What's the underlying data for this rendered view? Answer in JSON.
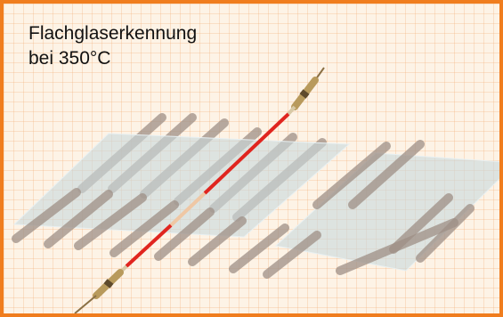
{
  "caption": {
    "line1": "Flachglaserkennung",
    "line2": "bei 350°C"
  },
  "colors": {
    "frame_border": "#f07d1e",
    "grid_background": "#fdf3e6",
    "roller": "#9e8f86",
    "glass_sheet": "#c9d8dc",
    "sensor_active": "#e0251f",
    "sensor_housing": "#b89a5c"
  },
  "icons": [
    "glass-sheet",
    "conveyor-roller",
    "temperature-sensor"
  ]
}
